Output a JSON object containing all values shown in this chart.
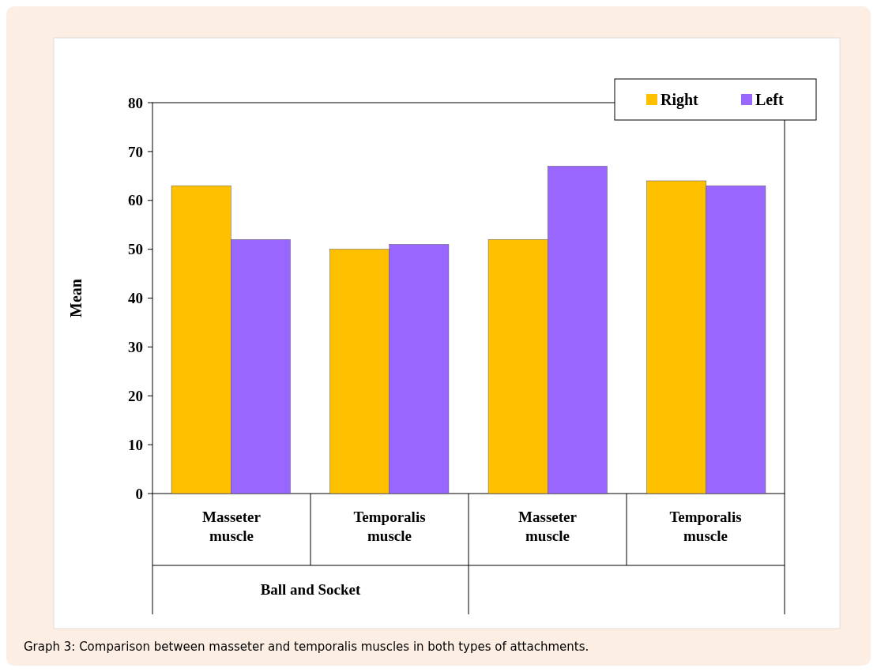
{
  "chart_data": {
    "type": "bar",
    "ylabel": "Mean",
    "categories": [
      "Masseter muscle",
      "Temporalis muscle",
      "Masseter muscle",
      "Temporalis muscle"
    ],
    "series": [
      {
        "name": "Right",
        "color": "#ffc000",
        "values": [
          63,
          50,
          52,
          64
        ]
      },
      {
        "name": "Left",
        "color": "#9966ff",
        "values": [
          52,
          51,
          67,
          63
        ]
      }
    ],
    "ylim": [
      0,
      80
    ],
    "yticks": [
      0,
      10,
      20,
      30,
      40,
      50,
      60,
      70,
      80
    ],
    "grid": false,
    "legend": "top right",
    "annotations": [
      "Ball and Socket",
      "Graph 3: Comparison between masseter and temporalis muscles in both types of attachments."
    ]
  }
}
